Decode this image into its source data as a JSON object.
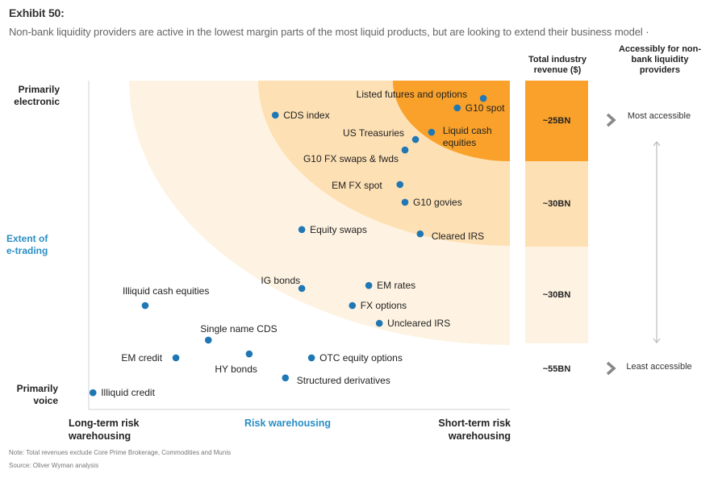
{
  "header": {
    "exhibit": "Exhibit 50:",
    "subtitle": "Non-bank liquidity providers are active in the lowest margin parts of the most liquid products, but are looking to extend their business model ·"
  },
  "chart_data": {
    "type": "scatter",
    "title": "Non-bank liquidity providers are active in the lowest margin parts of the most liquid products, but are looking to extend their business model",
    "xlabel": "Risk warehousing",
    "ylabel": "Extent of e-trading",
    "x_axis": {
      "min_label": "Long-term risk warehousing",
      "max_label": "Short-term risk warehousing",
      "range": [
        0,
        100
      ]
    },
    "y_axis": {
      "min_label": "Primarily voice",
      "max_label": "Primarily electronic",
      "range": [
        0,
        100
      ]
    },
    "grid": false,
    "point_color": "#1f77b4",
    "zones": [
      {
        "name": "outer",
        "color": "#fef3e2",
        "revenue": "~30BN"
      },
      {
        "name": "middle",
        "color": "#fde0b4",
        "revenue": "~30BN"
      },
      {
        "name": "inner",
        "color": "#f9a12a",
        "revenue": "~25BN"
      }
    ],
    "points": [
      {
        "label": "Listed futures and options",
        "x": 93.7,
        "y": 94.6,
        "label_pos": "left"
      },
      {
        "label": "G10 spot",
        "x": 87.5,
        "y": 91.7,
        "label_pos": "right"
      },
      {
        "label": "CDS index",
        "x": 44.3,
        "y": 89.5,
        "label_pos": "right"
      },
      {
        "label": "Liquid cash equities",
        "x": 81.4,
        "y": 84.3,
        "label_pos": "right-two-line"
      },
      {
        "label": "US Treasuries",
        "x": 77.6,
        "y": 82.1,
        "label_pos": "left-up"
      },
      {
        "label": "G10 FX swaps & fwds",
        "x": 75.1,
        "y": 78.9,
        "label_pos": "left-down"
      },
      {
        "label": "EM FX spot",
        "x": 73.9,
        "y": 68.4,
        "label_pos": "left"
      },
      {
        "label": "G10 govies",
        "x": 75.1,
        "y": 63.0,
        "label_pos": "right"
      },
      {
        "label": "Equity swaps",
        "x": 50.6,
        "y": 54.7,
        "label_pos": "right"
      },
      {
        "label": "Cleared IRS",
        "x": 78.7,
        "y": 53.4,
        "label_pos": "right-down"
      },
      {
        "label": "IG bonds",
        "x": 50.6,
        "y": 36.8,
        "label_pos": "left-up"
      },
      {
        "label": "EM rates",
        "x": 66.5,
        "y": 37.7,
        "label_pos": "right"
      },
      {
        "label": "Illiquid cash equities",
        "x": 13.4,
        "y": 31.6,
        "label_pos": "up"
      },
      {
        "label": "FX options",
        "x": 62.6,
        "y": 31.6,
        "label_pos": "right"
      },
      {
        "label": "Uncleared IRS",
        "x": 69.0,
        "y": 26.2,
        "label_pos": "right"
      },
      {
        "label": "Single name CDS",
        "x": 28.4,
        "y": 21.1,
        "label_pos": "up"
      },
      {
        "label": "EM credit",
        "x": 20.7,
        "y": 15.7,
        "label_pos": "left"
      },
      {
        "label": "HY bonds",
        "x": 38.1,
        "y": 16.9,
        "label_pos": "down"
      },
      {
        "label": "OTC equity options",
        "x": 52.9,
        "y": 15.7,
        "label_pos": "right"
      },
      {
        "label": "Structured derivatives",
        "x": 46.7,
        "y": 9.6,
        "label_pos": "right-down"
      },
      {
        "label": "Illiquid credit",
        "x": 1.0,
        "y": 5.1,
        "label_pos": "right"
      }
    ]
  },
  "axes": {
    "y_top": "Primarily electronic",
    "y_mid": "Extent of e-trading",
    "y_bottom": "Primarily voice",
    "x_left": "Long-term risk warehousing",
    "x_mid": "Risk warehousing",
    "x_right": "Short-term risk warehousing"
  },
  "revenue_column": {
    "header": "Total industry revenue ($)",
    "tiers": [
      {
        "value": "~25BN",
        "color": "#f9a12a"
      },
      {
        "value": "~30BN",
        "color": "#fde0b4"
      },
      {
        "value": "~30BN",
        "color": "#fef3e2"
      },
      {
        "value": "~55BN",
        "color": "#ffffff"
      }
    ]
  },
  "accessibility_column": {
    "header": "Accessibly for non-bank liquidity providers",
    "top": "Most accessible",
    "bottom": "Least accessible"
  },
  "footer": {
    "note": "Note: Total revenues exclude Core Prime Brokerage, Commodities and Munis",
    "source": "Source: Oliver Wyman analysis"
  }
}
